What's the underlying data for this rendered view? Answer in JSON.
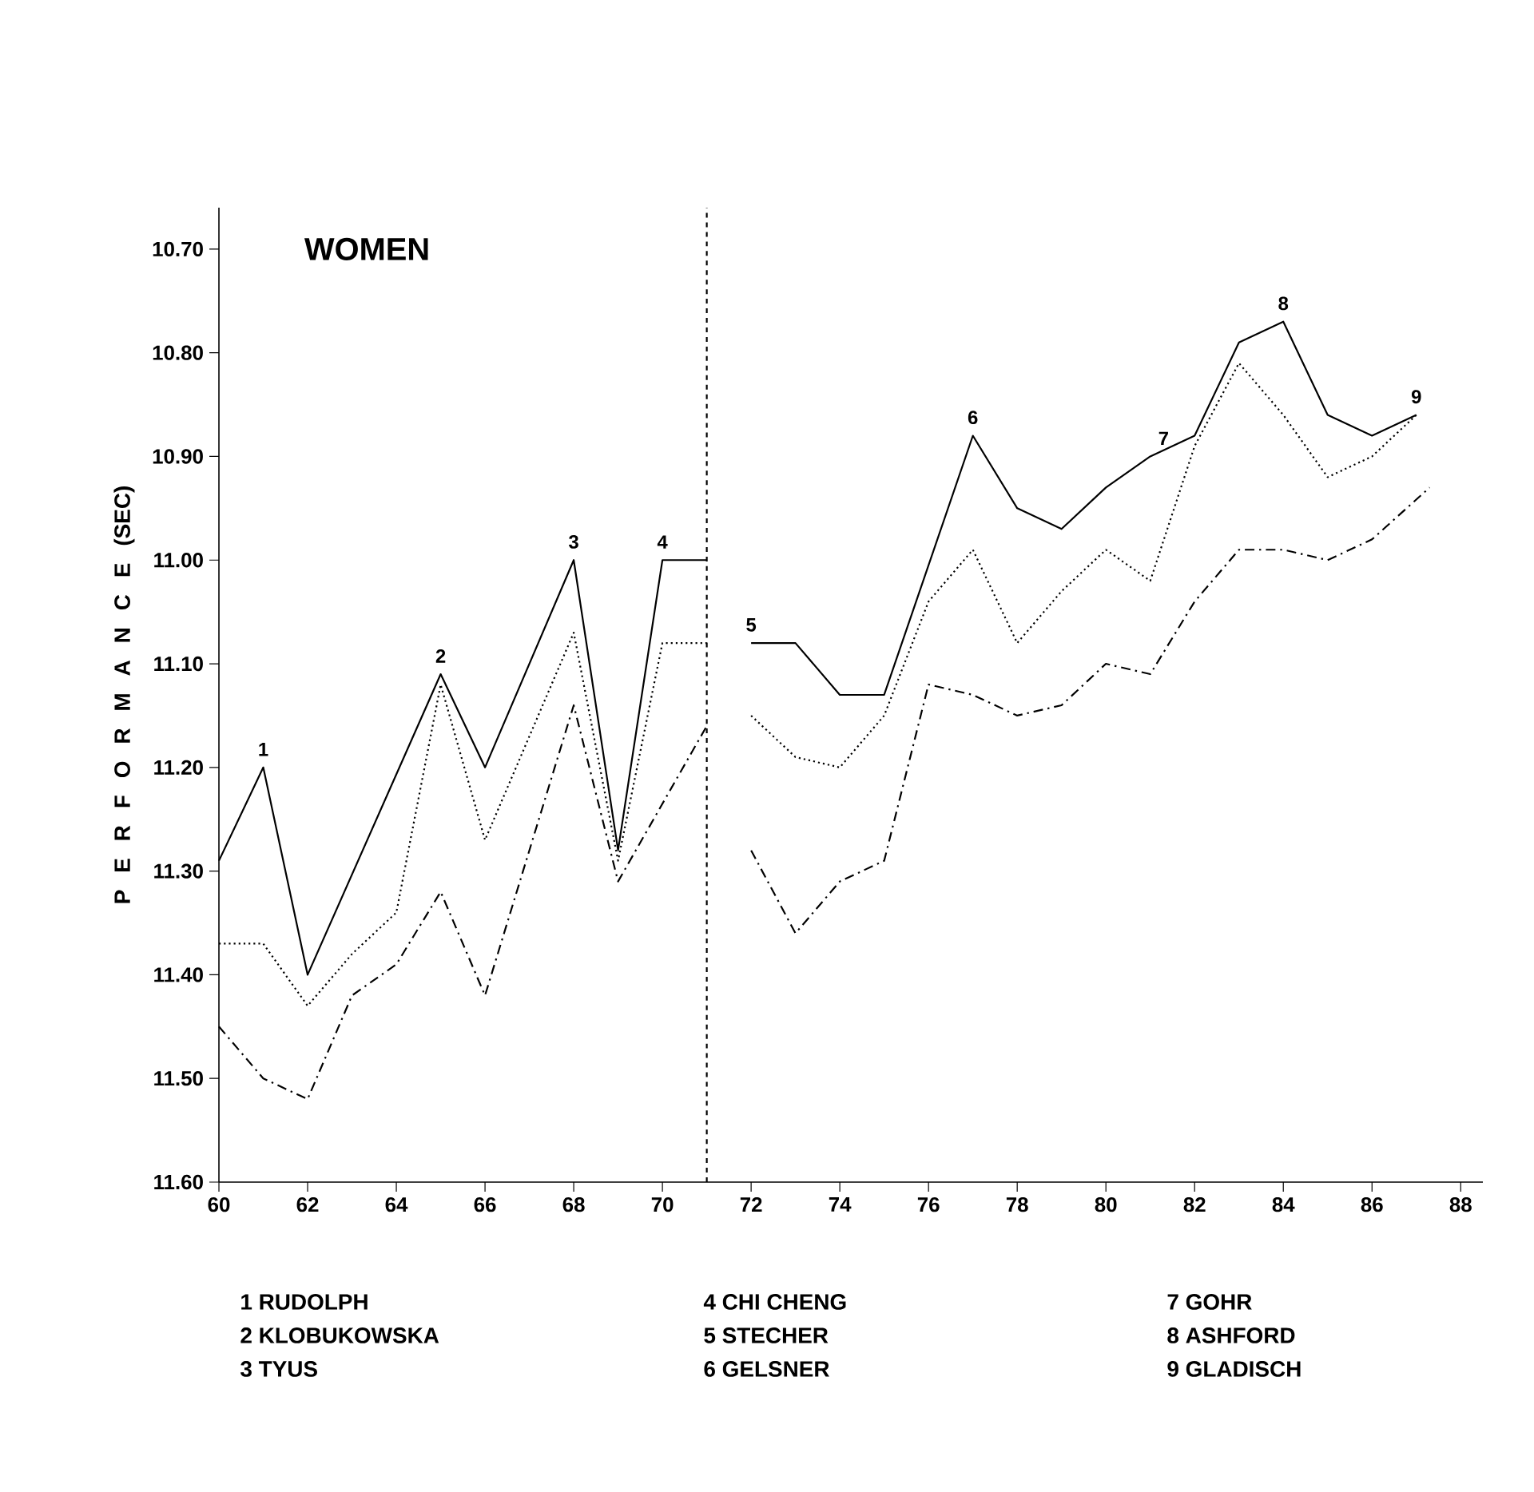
{
  "chart_data": {
    "type": "line",
    "title": "WOMEN",
    "ylabel": "P E R F O R M A N C E (SEC)",
    "xlim": [
      60,
      88.5
    ],
    "ylim": [
      11.6,
      10.66
    ],
    "xticks": [
      60,
      62,
      64,
      66,
      68,
      70,
      72,
      74,
      76,
      78,
      80,
      82,
      84,
      86,
      88
    ],
    "yticks": [
      {
        "value": 10.7,
        "label": "10.70"
      },
      {
        "value": 10.8,
        "label": "10.80"
      },
      {
        "value": 10.9,
        "label": "10.90"
      },
      {
        "value": 11.0,
        "label": "11.00"
      },
      {
        "value": 11.1,
        "label": "11.10"
      },
      {
        "value": 11.2,
        "label": "11.20"
      },
      {
        "value": 11.3,
        "label": "11.30"
      },
      {
        "value": 11.4,
        "label": "11.40"
      },
      {
        "value": 11.5,
        "label": "11.50"
      },
      {
        "value": 11.6,
        "label": "11.60"
      }
    ],
    "series": [
      {
        "color": "#000000",
        "line_style": "solid",
        "x": [
          60,
          61,
          62,
          65,
          66,
          68,
          69,
          70,
          71
        ],
        "values": [
          11.29,
          11.2,
          11.4,
          11.11,
          11.2,
          11.0,
          11.28,
          11.0,
          11.0
        ]
      },
      {
        "color": "#000000",
        "line_style": "dotted",
        "x": [
          60,
          61,
          62,
          63,
          64,
          65,
          66,
          68,
          69,
          70,
          71
        ],
        "values": [
          11.37,
          11.37,
          11.43,
          11.38,
          11.34,
          11.12,
          11.27,
          11.07,
          11.29,
          11.08,
          11.08
        ]
      },
      {
        "color": "#000000",
        "line_style": "dashdot",
        "x": [
          60,
          61,
          62,
          63,
          64,
          65,
          66,
          68,
          69,
          71
        ],
        "values": [
          11.45,
          11.5,
          11.52,
          11.42,
          11.39,
          11.32,
          11.42,
          11.14,
          11.31,
          11.16
        ]
      },
      {
        "color": "#000000",
        "line_style": "solid",
        "x": [
          72,
          73,
          74,
          75,
          77,
          78,
          79,
          80,
          81,
          82,
          83,
          84,
          85,
          86,
          87
        ],
        "values": [
          11.08,
          11.08,
          11.13,
          11.13,
          10.88,
          10.95,
          10.97,
          10.93,
          10.9,
          10.88,
          10.79,
          10.77,
          10.86,
          10.88,
          10.86
        ]
      },
      {
        "color": "#000000",
        "line_style": "dotted",
        "x": [
          72,
          73,
          74,
          75,
          76,
          77,
          78,
          79,
          80,
          81,
          82,
          83,
          84,
          85,
          86,
          87
        ],
        "values": [
          11.15,
          11.19,
          11.2,
          11.15,
          11.04,
          10.99,
          11.08,
          11.03,
          10.99,
          11.02,
          10.89,
          10.81,
          10.86,
          10.92,
          10.9,
          10.86
        ]
      },
      {
        "color": "#000000",
        "line_style": "dashdot",
        "x": [
          72,
          73,
          74,
          75,
          76,
          77,
          78,
          79,
          80,
          81,
          82,
          83,
          84,
          85,
          86,
          87.3
        ],
        "values": [
          11.28,
          11.36,
          11.31,
          11.29,
          11.12,
          11.13,
          11.15,
          11.14,
          11.1,
          11.11,
          11.04,
          10.99,
          10.99,
          11.0,
          10.98,
          10.93
        ]
      }
    ],
    "ref_lines": [
      {
        "axis": "x",
        "value": 71,
        "color": "#000000",
        "line_style": "dashed"
      }
    ],
    "annotations": [
      {
        "text": "1",
        "x": 61,
        "y": 11.2
      },
      {
        "text": "2",
        "x": 65,
        "y": 11.11
      },
      {
        "text": "3",
        "x": 68,
        "y": 11.0
      },
      {
        "text": "4",
        "x": 70,
        "y": 11.0
      },
      {
        "text": "5",
        "x": 72,
        "y": 11.08
      },
      {
        "text": "6",
        "x": 77,
        "y": 10.88
      },
      {
        "text": "7",
        "x": 81.3,
        "y": 10.9
      },
      {
        "text": "8",
        "x": 84,
        "y": 10.77
      },
      {
        "text": "9",
        "x": 87,
        "y": 10.86
      },
      "1 RUDOLPH",
      "2 KLOBUKOWSKA",
      "3 TYUS",
      "4 CHI CHENG",
      "5 STECHER",
      "6 GELSNER",
      "7 GOHR",
      "8 ASHFORD",
      "9 GLADISCH"
    ]
  }
}
